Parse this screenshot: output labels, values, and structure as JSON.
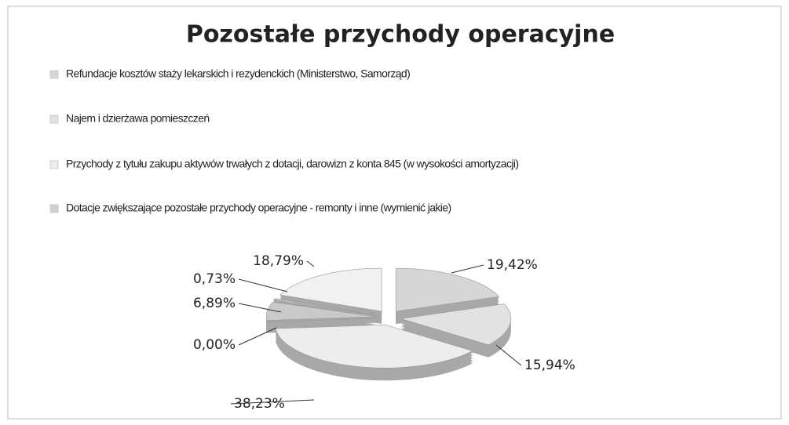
{
  "chart_data": {
    "type": "pie",
    "title": "Pozostałe przychody operacyjne",
    "categories": [
      "Refundacje kosztów staży lekarskich i rezydenckich (Ministerstwo, Samorząd)",
      "Najem i dzierżawa pomieszczeń",
      "Przychody z tytułu zakupu aktywów trwałych z dotacji, darowizn z konta 845 (w wysokości amortyzacji)",
      "Dotacje zwiększające pozostałe przychody operacyjne - remonty i inne (wymienić jakie)",
      null,
      null,
      null
    ],
    "values": [
      19.42,
      15.94,
      38.23,
      0.0,
      6.89,
      0.73,
      18.79
    ],
    "value_labels": [
      "19,42%",
      "15,94%",
      "38,23%",
      "0,00%",
      "6,89%",
      "0,73%",
      "18,79%"
    ],
    "colors": [
      "#d6d6d6",
      "#e2e2e2",
      "#ededed",
      "#cfcfcf",
      "#c9c9c9",
      "#bdbdbd",
      "#f1f1f1"
    ]
  }
}
